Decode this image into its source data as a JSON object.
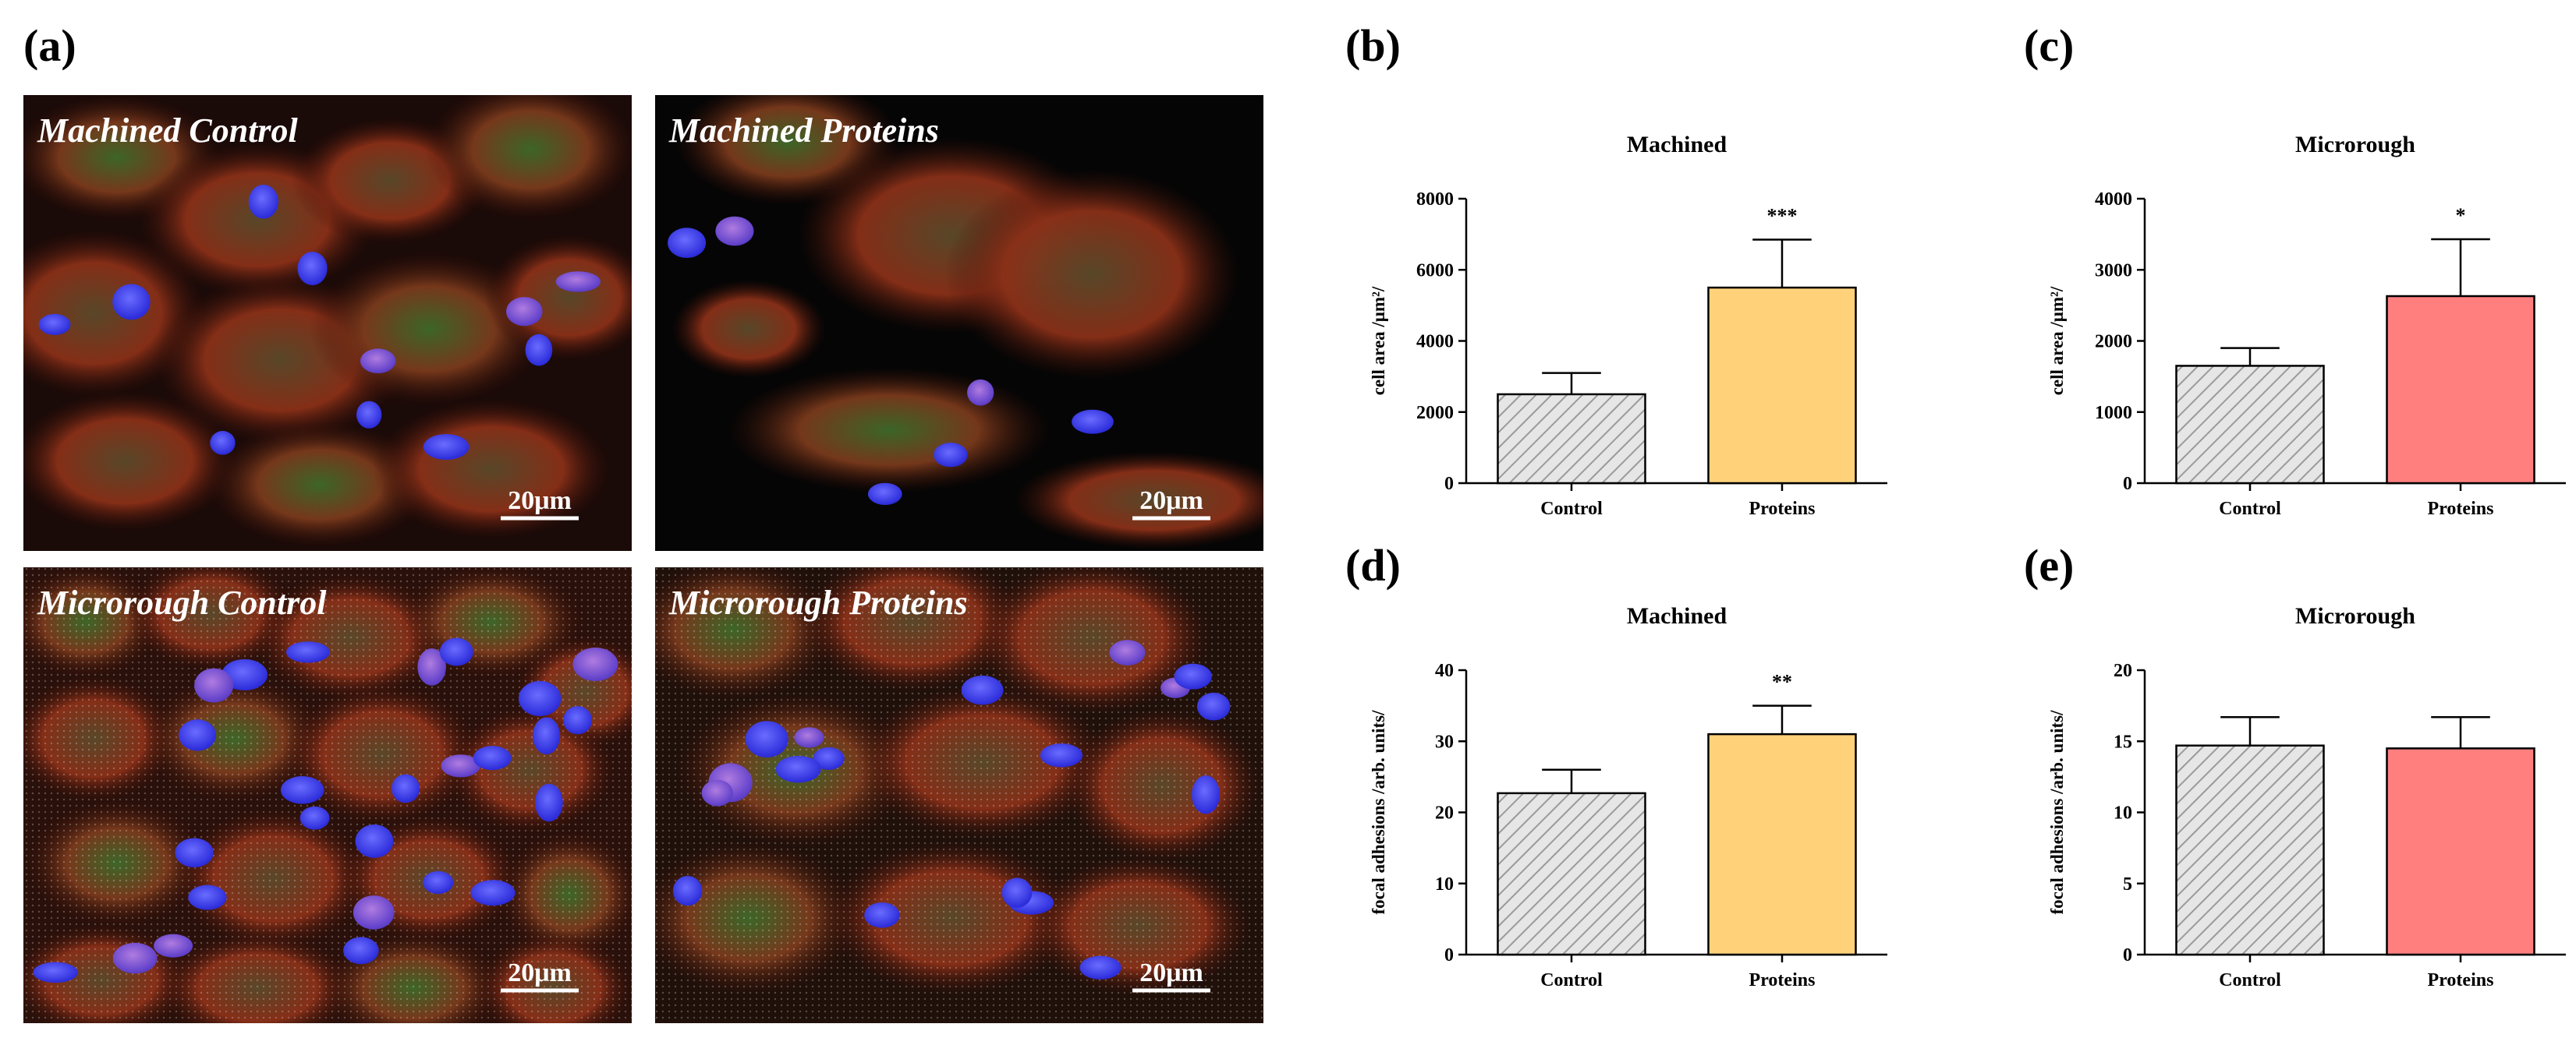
{
  "panel_labels": {
    "a": "(a)",
    "b": "(b)",
    "c": "(c)",
    "d": "(d)",
    "e": "(e)"
  },
  "micrographs": [
    {
      "title": "Machined Control",
      "scale": "20μm",
      "bg": "#1a0a08"
    },
    {
      "title": "Machined Proteins",
      "scale": "20μm",
      "bg": "#050505"
    },
    {
      "title": "Microrough Control",
      "scale": "20μm",
      "bg": "#2a100a"
    },
    {
      "title": "Microrough Proteins",
      "scale": "20μm",
      "bg": "#20100a"
    }
  ],
  "colors": {
    "control_fill": "#e6e6e6",
    "control_hatch": "#9a9a9a",
    "machined_proteins": "#ffd27a",
    "microrough_proteins": "#ff7f7f"
  },
  "chart_data": [
    {
      "panel": "b",
      "type": "bar",
      "title": "Machined",
      "ylabel": "cell area /μm²/",
      "categories": [
        "Control",
        "Proteins"
      ],
      "values": [
        2500,
        5500
      ],
      "errors": [
        600,
        1350
      ],
      "ylim": [
        0,
        8000
      ],
      "yticks": [
        0,
        2000,
        4000,
        6000,
        8000
      ],
      "significance": [
        "",
        "***"
      ],
      "proteins_color": "#ffd27a"
    },
    {
      "panel": "c",
      "type": "bar",
      "title": "Microrough",
      "ylabel": "cell area /μm²/",
      "categories": [
        "Control",
        "Proteins"
      ],
      "values": [
        1650,
        2630
      ],
      "errors": [
        250,
        800
      ],
      "ylim": [
        0,
        4000
      ],
      "yticks": [
        0,
        1000,
        2000,
        3000,
        4000
      ],
      "significance": [
        "",
        "*"
      ],
      "proteins_color": "#ff7f7f"
    },
    {
      "panel": "d",
      "type": "bar",
      "title": "Machined",
      "ylabel": "focal adhesions /arb. units/",
      "categories": [
        "Control",
        "Proteins"
      ],
      "values": [
        22.7,
        31
      ],
      "errors": [
        3.3,
        4
      ],
      "ylim": [
        0,
        40
      ],
      "yticks": [
        0,
        10,
        20,
        30,
        40
      ],
      "significance": [
        "",
        "**"
      ],
      "proteins_color": "#ffd27a"
    },
    {
      "panel": "e",
      "type": "bar",
      "title": "Microrough",
      "ylabel": "focal adhesions /arb. units/",
      "categories": [
        "Control",
        "Proteins"
      ],
      "values": [
        14.7,
        14.5
      ],
      "errors": [
        2,
        2.2
      ],
      "ylim": [
        0,
        20
      ],
      "yticks": [
        0,
        5,
        10,
        15,
        20
      ],
      "significance": [
        "",
        ""
      ],
      "proteins_color": "#ff7f7f"
    }
  ]
}
